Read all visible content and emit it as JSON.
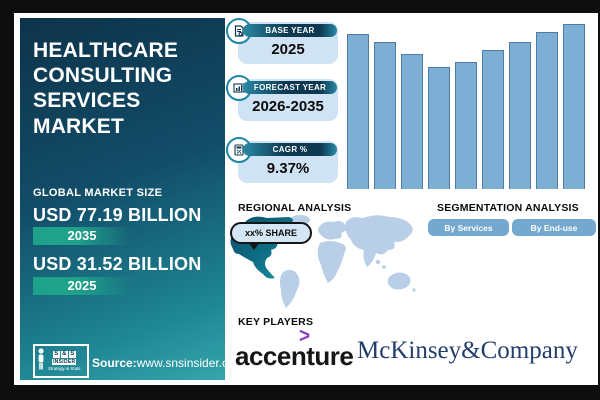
{
  "left_panel": {
    "title": "HEALTHCARE\nCONSULTING\nSERVICES MARKET",
    "market_size_label": "GLOBAL MARKET SIZE",
    "value_2035": "USD 77.19 BILLION",
    "badge_2035": "2035",
    "value_2025": "USD 31.52 BILLION",
    "badge_2025": "2025",
    "logo": {
      "s1": "S",
      "amp": "&",
      "s2": "S",
      "insider": "INSIDER",
      "tagline": "Strategy & Stats"
    },
    "source_label": "Source:",
    "source_url": "www.snsinsider.com"
  },
  "stats": [
    {
      "label": "BASE YEAR",
      "value": "2025",
      "icon": "report-icon"
    },
    {
      "label": "FORECAST YEAR",
      "value": "2026-2035",
      "icon": "bar-chart-icon"
    },
    {
      "label": "CAGR %",
      "value": "9.37%",
      "icon": "percent-calculator-icon"
    }
  ],
  "regional": {
    "heading": "REGIONAL ANALYSIS",
    "callout": "xx% SHARE",
    "highlighted_region": "North America"
  },
  "segmentation": {
    "heading": "SEGMENTATION ANALYSIS",
    "buttons": [
      "By Services",
      "By End-use"
    ]
  },
  "key_players": {
    "heading": "KEY PLAYERS",
    "players": [
      "accenture",
      "McKinsey&Company"
    ],
    "accenture_caret": ">"
  },
  "colors": {
    "panel_gradient_top": "#0d3349",
    "panel_gradient_bottom": "#35a5ab",
    "badge_green": "#1fa28a",
    "stat_card_bg": "#cfe3f4",
    "stat_pill_navy": "#0d3850",
    "stat_circle_ring": "#1e85a2",
    "bar_fill": "#7dafd4",
    "bar_stroke": "#4e7ca6",
    "button_blue": "#74a9cf",
    "map_light": "#b9cfe8",
    "map_highlight_dark": "#0b5c76",
    "map_highlight_teal": "#1e94a6",
    "accenture_purple": "#8e3cc0",
    "mckinsey_navy": "#233e6b"
  },
  "chart_data": {
    "type": "bar",
    "categories": [
      "",
      "",
      "",
      "",
      "",
      "",
      "",
      "",
      ""
    ],
    "values": [
      94,
      89,
      82,
      74,
      77,
      84,
      89,
      95,
      100
    ],
    "units": "relative bar height, % of tallest bar (no axis labels shown)",
    "title": "",
    "xlabel": "",
    "ylabel": "",
    "ylim": [
      0,
      100
    ],
    "grid": false,
    "legend": false,
    "bar_color": "#7dafd4"
  }
}
